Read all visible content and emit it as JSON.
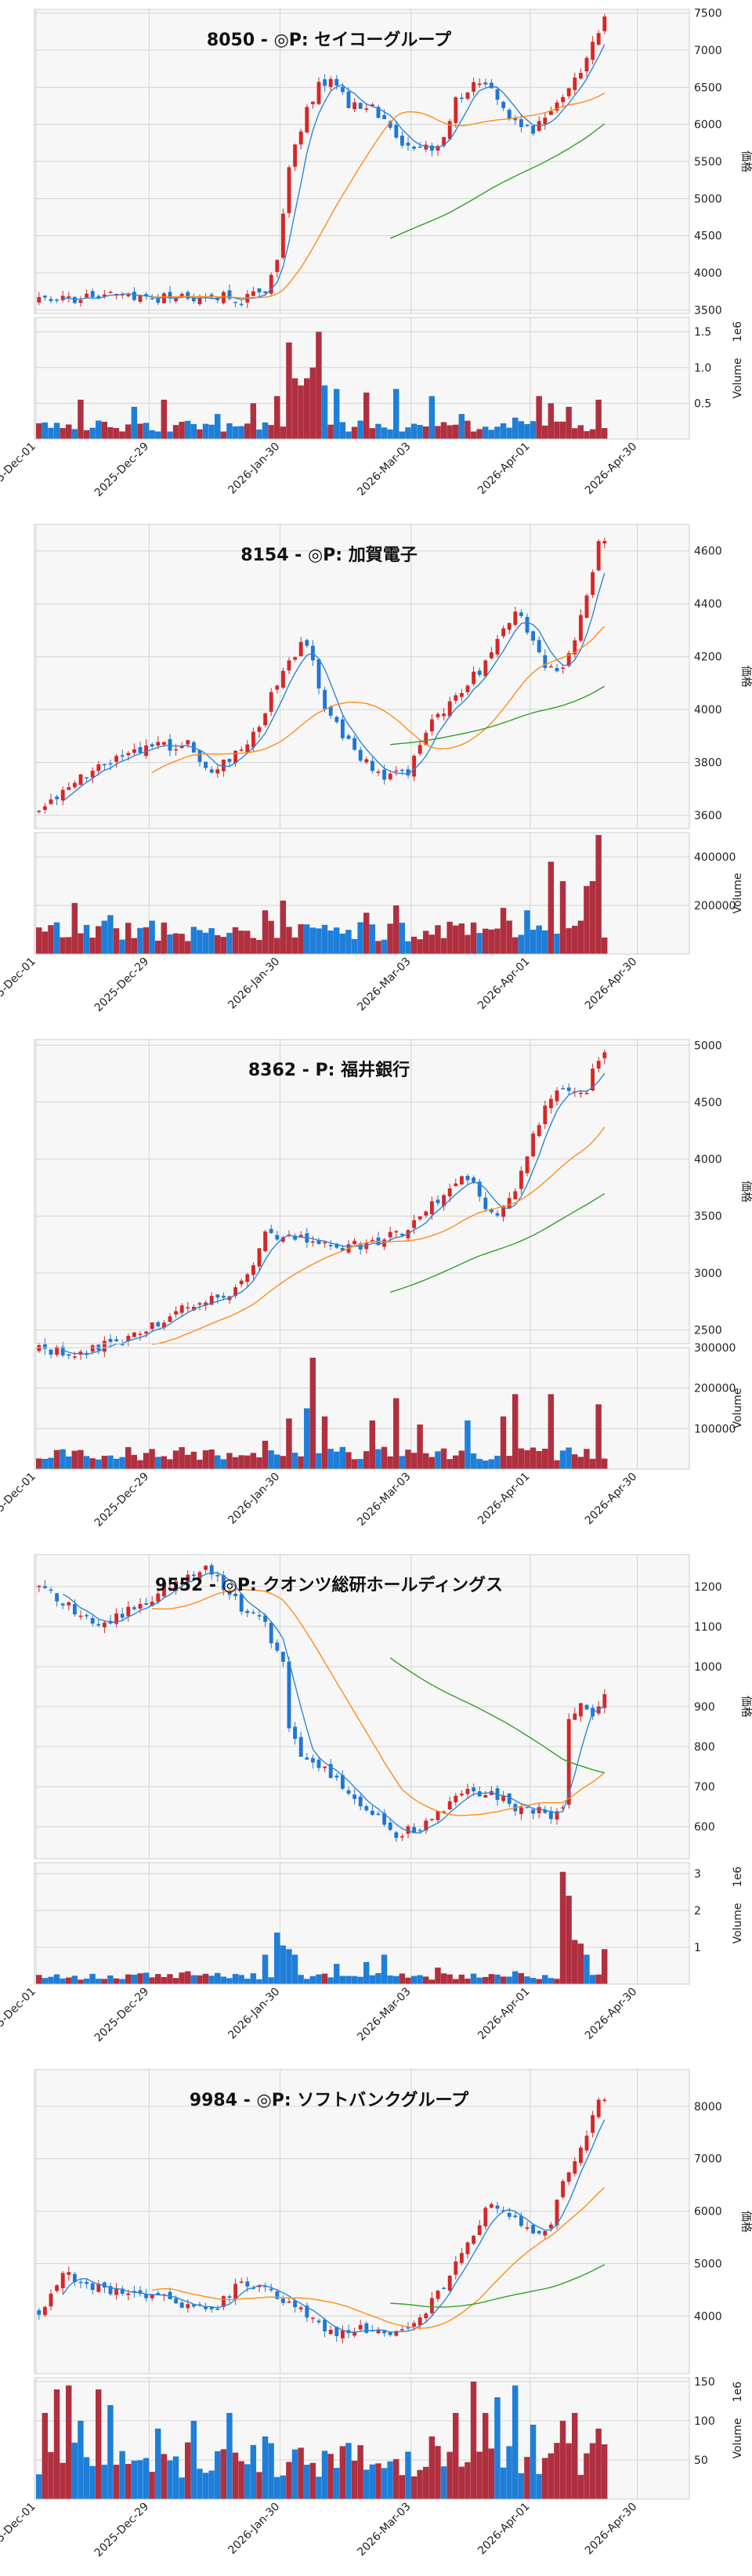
{
  "x_ticks": [
    "2025-Dec-01",
    "2025-Dec-29",
    "2026-Jan-30",
    "2026-Mar-03",
    "2026-Apr-01",
    "2026-Apr-30"
  ],
  "colors": {
    "up": "#d62728",
    "down": "#1f77d4",
    "up_volume": "#b03040",
    "down_volume": "#1f7fd8",
    "ma_short": "#2b87d6",
    "ma_mid": "#ff8c1a",
    "ma_long": "#33a02c"
  },
  "chart_data": [
    {
      "type": "candlestick",
      "title": "8050 - ◎P: セイコーグループ",
      "ylabel": "価格",
      "volume_label": "Volume",
      "volume_scale_label": "1e6",
      "ylim": [
        3450,
        7550
      ],
      "yticks": [
        3500,
        4000,
        4500,
        5000,
        5500,
        6000,
        6500,
        7000,
        7500
      ],
      "volume_ylim": [
        0,
        1.7
      ],
      "volume_yticks": [
        0.5,
        1.0,
        1.5
      ],
      "volume_ticklabels": [
        "0.5",
        "1.0",
        "1.5"
      ],
      "anchors": [
        [
          0,
          3620
        ],
        [
          6,
          3640
        ],
        [
          12,
          3700
        ],
        [
          20,
          3650
        ],
        [
          28,
          3700
        ],
        [
          34,
          3650
        ],
        [
          38,
          3780
        ],
        [
          40,
          4200
        ],
        [
          42,
          5400
        ],
        [
          45,
          6200
        ],
        [
          47,
          6550
        ],
        [
          49,
          6600
        ],
        [
          52,
          6250
        ],
        [
          56,
          6200
        ],
        [
          60,
          5800
        ],
        [
          64,
          5650
        ],
        [
          67,
          5700
        ],
        [
          70,
          6300
        ],
        [
          73,
          6600
        ],
        [
          76,
          6450
        ],
        [
          80,
          6000
        ],
        [
          83,
          5900
        ],
        [
          86,
          6200
        ],
        [
          88,
          6400
        ],
        [
          91,
          6700
        ],
        [
          93,
          7050
        ],
        [
          95,
          7400
        ]
      ],
      "volume_level": 0.18,
      "volume_spikes": [
        [
          7,
          0.55
        ],
        [
          16,
          0.45
        ],
        [
          21,
          0.55
        ],
        [
          30,
          0.35
        ],
        [
          36,
          0.5
        ],
        [
          40,
          0.6
        ],
        [
          42,
          1.35
        ],
        [
          43,
          0.85
        ],
        [
          44,
          0.75
        ],
        [
          45,
          0.85
        ],
        [
          46,
          1.0
        ],
        [
          47,
          1.5
        ],
        [
          48,
          0.75
        ],
        [
          50,
          0.7
        ],
        [
          55,
          0.65
        ],
        [
          60,
          0.7
        ],
        [
          66,
          0.6
        ],
        [
          71,
          0.35
        ],
        [
          80,
          0.3
        ],
        [
          84,
          0.6
        ],
        [
          86,
          0.5
        ],
        [
          89,
          0.45
        ],
        [
          94,
          0.55
        ]
      ]
    },
    {
      "type": "candlestick",
      "title": "8154 - ◎P: 加賀電子",
      "ylabel": "価格",
      "volume_label": "Volume",
      "volume_scale_label": "",
      "ylim": [
        3550,
        4700
      ],
      "yticks": [
        3600,
        3800,
        4000,
        4200,
        4400,
        4600
      ],
      "volume_ylim": [
        0,
        500000
      ],
      "volume_yticks": [
        200000,
        400000
      ],
      "volume_ticklabels": [
        "200000",
        "400000"
      ],
      "anchors": [
        [
          0,
          3620
        ],
        [
          5,
          3710
        ],
        [
          10,
          3780
        ],
        [
          15,
          3830
        ],
        [
          20,
          3860
        ],
        [
          25,
          3870
        ],
        [
          28,
          3760
        ],
        [
          32,
          3820
        ],
        [
          36,
          3900
        ],
        [
          40,
          4100
        ],
        [
          44,
          4250
        ],
        [
          46,
          4200
        ],
        [
          48,
          4000
        ],
        [
          51,
          3900
        ],
        [
          55,
          3800
        ],
        [
          58,
          3750
        ],
        [
          62,
          3760
        ],
        [
          66,
          3950
        ],
        [
          70,
          4050
        ],
        [
          74,
          4150
        ],
        [
          78,
          4300
        ],
        [
          80,
          4380
        ],
        [
          82,
          4300
        ],
        [
          84,
          4200
        ],
        [
          86,
          4150
        ],
        [
          88,
          4160
        ],
        [
          90,
          4250
        ],
        [
          92,
          4450
        ],
        [
          94,
          4620
        ]
      ],
      "volume_level": 95000,
      "volume_spikes": [
        [
          6,
          210000
        ],
        [
          12,
          160000
        ],
        [
          38,
          180000
        ],
        [
          41,
          220000
        ],
        [
          55,
          170000
        ],
        [
          60,
          200000
        ],
        [
          78,
          190000
        ],
        [
          82,
          180000
        ],
        [
          86,
          380000
        ],
        [
          88,
          300000
        ],
        [
          92,
          280000
        ],
        [
          93,
          300000
        ],
        [
          94,
          490000
        ]
      ]
    },
    {
      "type": "candlestick",
      "title": "8362 - P: 福井銀行",
      "ylabel": "価格",
      "volume_label": "Volume",
      "volume_scale_label": "",
      "ylim": [
        2380,
        5050
      ],
      "yticks": [
        2500,
        3000,
        3500,
        4000,
        4500,
        5000
      ],
      "volume_ylim": [
        0,
        300000
      ],
      "volume_yticks": [
        100000,
        200000,
        300000
      ],
      "volume_ticklabels": [
        "100000",
        "200000",
        "300000"
      ],
      "anchors": [
        [
          0,
          2320
        ],
        [
          8,
          2300
        ],
        [
          14,
          2420
        ],
        [
          20,
          2560
        ],
        [
          26,
          2730
        ],
        [
          32,
          2820
        ],
        [
          36,
          3100
        ],
        [
          38,
          3350
        ],
        [
          42,
          3300
        ],
        [
          46,
          3300
        ],
        [
          48,
          3250
        ],
        [
          52,
          3230
        ],
        [
          56,
          3270
        ],
        [
          60,
          3340
        ],
        [
          64,
          3480
        ],
        [
          68,
          3700
        ],
        [
          72,
          3850
        ],
        [
          76,
          3500
        ],
        [
          80,
          3700
        ],
        [
          83,
          4200
        ],
        [
          86,
          4550
        ],
        [
          89,
          4600
        ],
        [
          92,
          4620
        ],
        [
          94,
          4900
        ]
      ],
      "volume_level": 38000,
      "volume_spikes": [
        [
          38,
          70000
        ],
        [
          42,
          125000
        ],
        [
          45,
          150000
        ],
        [
          46,
          275000
        ],
        [
          48,
          130000
        ],
        [
          56,
          120000
        ],
        [
          60,
          175000
        ],
        [
          64,
          110000
        ],
        [
          72,
          120000
        ],
        [
          78,
          130000
        ],
        [
          80,
          185000
        ],
        [
          86,
          185000
        ],
        [
          94,
          160000
        ]
      ]
    },
    {
      "type": "candlestick",
      "title": "9552 - ◎P: クオンツ総研ホールディングス",
      "ylabel": "価格",
      "volume_label": "Volume",
      "volume_scale_label": "1e6",
      "ylim": [
        520,
        1280
      ],
      "yticks": [
        600,
        700,
        800,
        900,
        1000,
        1100,
        1200
      ],
      "volume_ylim": [
        0,
        3.3
      ],
      "volume_yticks": [
        1,
        2,
        3
      ],
      "volume_ticklabels": [
        "1",
        "2",
        "3"
      ],
      "anchors": [
        [
          0,
          1200
        ],
        [
          5,
          1150
        ],
        [
          10,
          1100
        ],
        [
          16,
          1150
        ],
        [
          22,
          1200
        ],
        [
          28,
          1240
        ],
        [
          30,
          1220
        ],
        [
          34,
          1150
        ],
        [
          38,
          1100
        ],
        [
          41,
          1000
        ],
        [
          42,
          850
        ],
        [
          44,
          780
        ],
        [
          48,
          750
        ],
        [
          52,
          680
        ],
        [
          56,
          640
        ],
        [
          60,
          580
        ],
        [
          64,
          600
        ],
        [
          68,
          640
        ],
        [
          72,
          690
        ],
        [
          76,
          680
        ],
        [
          80,
          650
        ],
        [
          84,
          640
        ],
        [
          86,
          620
        ],
        [
          88,
          650
        ],
        [
          89,
          880
        ],
        [
          91,
          900
        ],
        [
          93,
          880
        ],
        [
          95,
          920
        ]
      ],
      "volume_level": 0.22,
      "volume_spikes": [
        [
          25,
          0.35
        ],
        [
          38,
          0.8
        ],
        [
          40,
          1.4
        ],
        [
          41,
          1.05
        ],
        [
          42,
          0.95
        ],
        [
          43,
          0.8
        ],
        [
          50,
          0.55
        ],
        [
          55,
          0.6
        ],
        [
          58,
          0.8
        ],
        [
          67,
          0.45
        ],
        [
          80,
          0.35
        ],
        [
          88,
          3.05
        ],
        [
          89,
          2.4
        ],
        [
          90,
          1.2
        ],
        [
          91,
          1.1
        ],
        [
          92,
          0.8
        ],
        [
          95,
          0.95
        ]
      ]
    },
    {
      "type": "candlestick",
      "title": "9984 - ◎P: ソフトバンクグループ",
      "ylabel": "価格",
      "volume_label": "Volume",
      "volume_scale_label": "1e6",
      "ylim": [
        2900,
        8700
      ],
      "yticks": [
        4000,
        5000,
        6000,
        7000,
        8000
      ],
      "volume_ylim": [
        0,
        155
      ],
      "volume_yticks": [
        50,
        100,
        150
      ],
      "volume_ticklabels": [
        "50",
        "100",
        "150"
      ],
      "anchors": [
        [
          0,
          4100
        ],
        [
          4,
          4800
        ],
        [
          8,
          4600
        ],
        [
          14,
          4400
        ],
        [
          20,
          4350
        ],
        [
          26,
          4200
        ],
        [
          30,
          4200
        ],
        [
          34,
          4700
        ],
        [
          38,
          4500
        ],
        [
          42,
          4300
        ],
        [
          46,
          3900
        ],
        [
          50,
          3700
        ],
        [
          54,
          3800
        ],
        [
          58,
          3600
        ],
        [
          62,
          3800
        ],
        [
          64,
          3900
        ],
        [
          68,
          4600
        ],
        [
          72,
          5400
        ],
        [
          76,
          6200
        ],
        [
          80,
          5900
        ],
        [
          82,
          5600
        ],
        [
          84,
          5500
        ],
        [
          86,
          5700
        ],
        [
          88,
          6600
        ],
        [
          90,
          7000
        ],
        [
          92,
          7400
        ],
        [
          94,
          8200
        ]
      ],
      "volume_level": 50,
      "volume_spikes": [
        [
          1,
          110
        ],
        [
          3,
          140
        ],
        [
          5,
          145
        ],
        [
          7,
          100
        ],
        [
          10,
          140
        ],
        [
          12,
          120
        ],
        [
          20,
          90
        ],
        [
          26,
          100
        ],
        [
          32,
          110
        ],
        [
          38,
          80
        ],
        [
          66,
          80
        ],
        [
          70,
          110
        ],
        [
          73,
          150
        ],
        [
          75,
          110
        ],
        [
          77,
          130
        ],
        [
          80,
          145
        ],
        [
          83,
          95
        ],
        [
          88,
          100
        ],
        [
          90,
          110
        ],
        [
          94,
          90
        ]
      ]
    }
  ]
}
